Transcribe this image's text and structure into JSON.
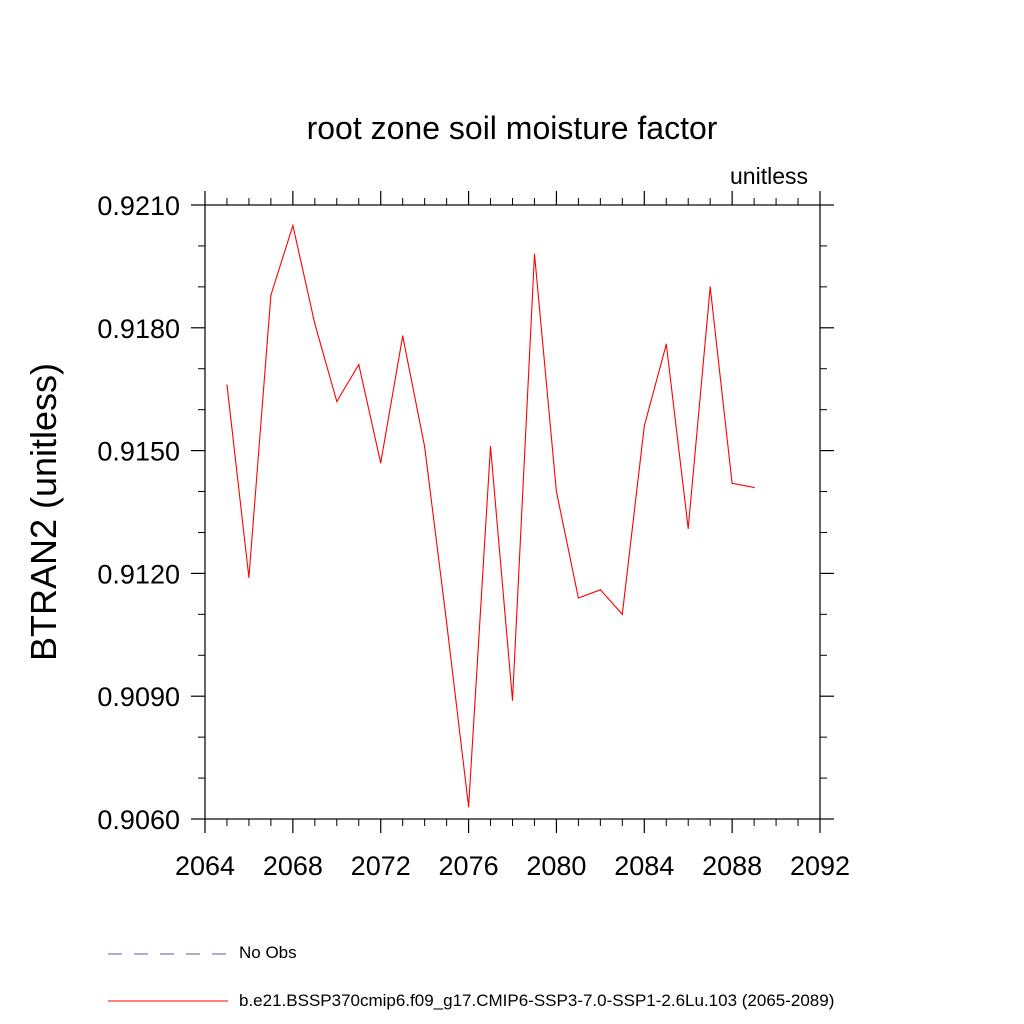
{
  "chart_data": {
    "type": "line",
    "title": "root zone soil moisture factor",
    "units_label": "unitless",
    "ylabel": "BTRAN2  (unitless)",
    "xlabel": "",
    "xlim": [
      2064,
      2092
    ],
    "ylim": [
      0.906,
      0.921
    ],
    "xticks": [
      2064,
      2068,
      2072,
      2076,
      2080,
      2084,
      2088,
      2092
    ],
    "yticks": [
      0.906,
      0.909,
      0.912,
      0.915,
      0.918,
      0.921
    ],
    "ytick_labels": [
      "0.9060",
      "0.9090",
      "0.9120",
      "0.9150",
      "0.9180",
      "0.9210"
    ],
    "series": [
      {
        "name": "b.e21.BSSP370cmip6.f09_g17.CMIP6-SSP3-7.0-SSP1-2.6Lu.103 (2065-2089)",
        "color": "#ff0000",
        "style": "solid",
        "x": [
          2065,
          2066,
          2067,
          2068,
          2069,
          2070,
          2071,
          2072,
          2073,
          2074,
          2075,
          2076,
          2077,
          2078,
          2079,
          2080,
          2081,
          2082,
          2083,
          2084,
          2085,
          2086,
          2087,
          2088,
          2089
        ],
        "values": [
          0.9166,
          0.9119,
          0.9188,
          0.9205,
          0.9181,
          0.9162,
          0.9171,
          0.9147,
          0.9178,
          0.9151,
          0.9108,
          0.9063,
          0.9151,
          0.9089,
          0.9198,
          0.914,
          0.9114,
          0.9116,
          0.911,
          0.9156,
          0.9176,
          0.9131,
          0.919,
          0.9142,
          0.9141
        ]
      }
    ],
    "legend": [
      {
        "label": "No Obs",
        "color": "#6655aa",
        "style": "dashed"
      },
      {
        "label": "b.e21.BSSP370cmip6.f09_g17.CMIP6-SSP3-7.0-SSP1-2.6Lu.103 (2065-2089)",
        "color": "#ff0000",
        "style": "solid"
      }
    ]
  }
}
